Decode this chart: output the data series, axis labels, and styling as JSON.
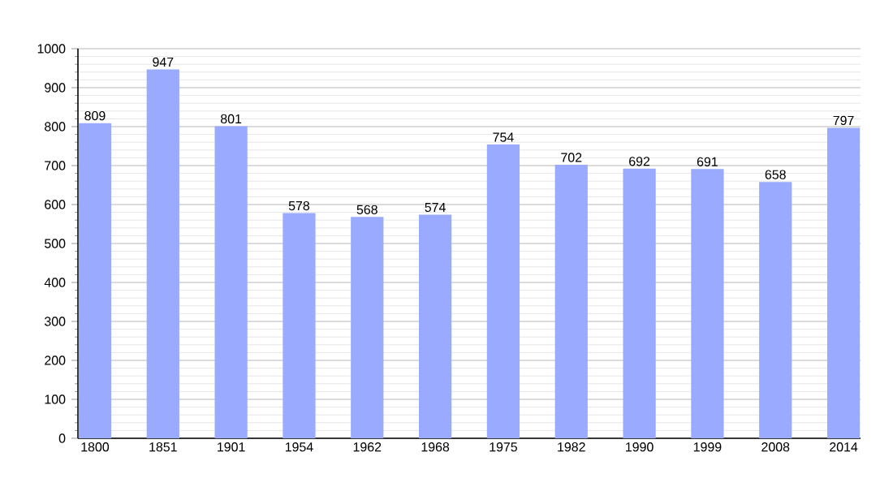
{
  "chart_data": {
    "type": "bar",
    "categories": [
      "1800",
      "1851",
      "1901",
      "1954",
      "1962",
      "1968",
      "1975",
      "1982",
      "1990",
      "1999",
      "2008",
      "2014"
    ],
    "values": [
      809,
      947,
      801,
      578,
      568,
      574,
      754,
      702,
      692,
      691,
      658,
      797
    ],
    "color": "#99aaff",
    "ylim": [
      0,
      1000
    ],
    "yticks": [
      0,
      100,
      200,
      300,
      400,
      500,
      600,
      700,
      800,
      900,
      1000
    ],
    "grid": "y",
    "data_labels": true
  }
}
